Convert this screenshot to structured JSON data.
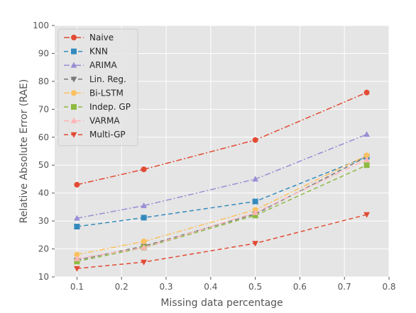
{
  "chart_data": {
    "type": "line",
    "title": "",
    "xlabel": "Missing data percentage",
    "ylabel": "Relative Absolute Error (RAE)",
    "xlim": [
      0.05,
      0.8
    ],
    "ylim": [
      10,
      100
    ],
    "xticks": [
      "0.1",
      "0.2",
      "0.3",
      "0.4",
      "0.5",
      "0.6",
      "0.7",
      "0.8"
    ],
    "yticks": [
      "10",
      "20",
      "30",
      "40",
      "50",
      "60",
      "70",
      "80",
      "90",
      "100"
    ],
    "grid": true,
    "legend_position": "top-left",
    "x": [
      0.1,
      0.25,
      0.5,
      0.75
    ],
    "series": [
      {
        "name": "Naive",
        "values": [
          43,
          48.5,
          59,
          76
        ],
        "color": "#E24A33",
        "marker": "circle",
        "dash": "dashdot"
      },
      {
        "name": "KNN",
        "values": [
          28,
          31.2,
          37,
          53
        ],
        "color": "#348ABD",
        "marker": "square",
        "dash": "dashed"
      },
      {
        "name": "ARIMA",
        "values": [
          31,
          35.5,
          45,
          61
        ],
        "color": "#988ED5",
        "marker": "triangle-up",
        "dash": "dashdot"
      },
      {
        "name": "Lin. Reg.",
        "values": [
          16,
          21,
          32.5,
          53
        ],
        "color": "#777777",
        "marker": "triangle-down",
        "dash": "dashed"
      },
      {
        "name": "Bi-LSTM",
        "values": [
          18,
          22.7,
          34,
          53.5
        ],
        "color": "#FBC15E",
        "marker": "circle",
        "dash": "dashdot"
      },
      {
        "name": "Indep. GP",
        "values": [
          15.5,
          20.5,
          32,
          50
        ],
        "color": "#8EBA42",
        "marker": "square",
        "dash": "dashed"
      },
      {
        "name": "VARMA",
        "values": [
          16.5,
          20.5,
          33,
          52
        ],
        "color": "#FFB5B8",
        "marker": "triangle-up",
        "dash": "dashdot"
      },
      {
        "name": "Multi-GP",
        "values": [
          13,
          15.3,
          22,
          32.3
        ],
        "color": "#E24A33",
        "marker": "triangle-down",
        "dash": "dashed"
      }
    ]
  }
}
